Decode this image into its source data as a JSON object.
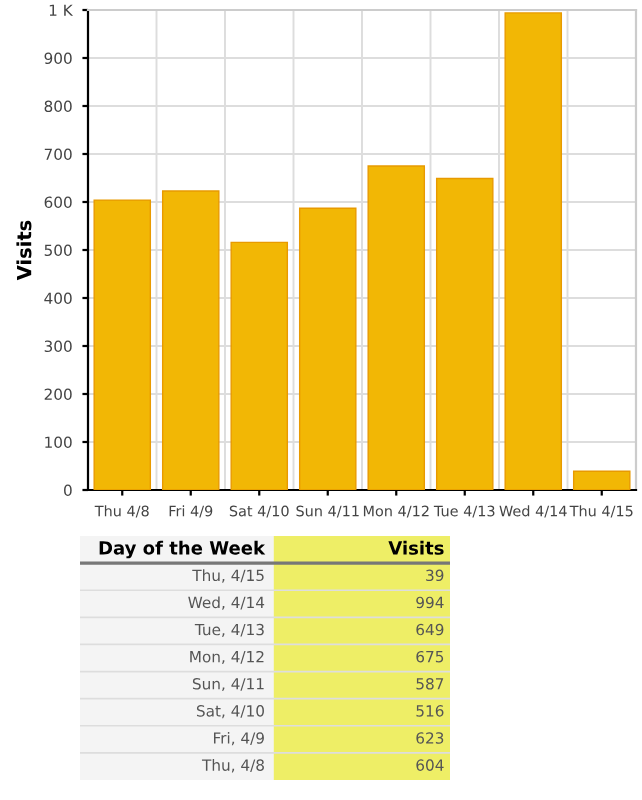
{
  "chart_data": {
    "type": "bar",
    "ylabel": "Visits",
    "categories": [
      "Thu 4/8",
      "Fri 4/9",
      "Sat 4/10",
      "Sun 4/11",
      "Mon 4/12",
      "Tue 4/13",
      "Wed 4/14",
      "Thu 4/15"
    ],
    "values": [
      604,
      623,
      516,
      587,
      675,
      649,
      994,
      39
    ],
    "color": "#f2b705",
    "ylim": [
      0,
      1000
    ],
    "yticks": [
      0,
      100,
      200,
      300,
      400,
      500,
      600,
      700,
      800,
      900,
      {
        "value": 1000,
        "label": "1 K"
      }
    ],
    "grid": true,
    "annotations": [
      "Day of the Week",
      "Visits",
      "Thu, 4/15",
      "39",
      "Wed, 4/14",
      "994",
      "Tue, 4/13",
      "649",
      "Mon, 4/12",
      "675",
      "Sun, 4/11",
      "587",
      "Sat, 4/10",
      "516",
      "Fri, 4/9",
      "623",
      "Thu, 4/8",
      "604"
    ]
  }
}
